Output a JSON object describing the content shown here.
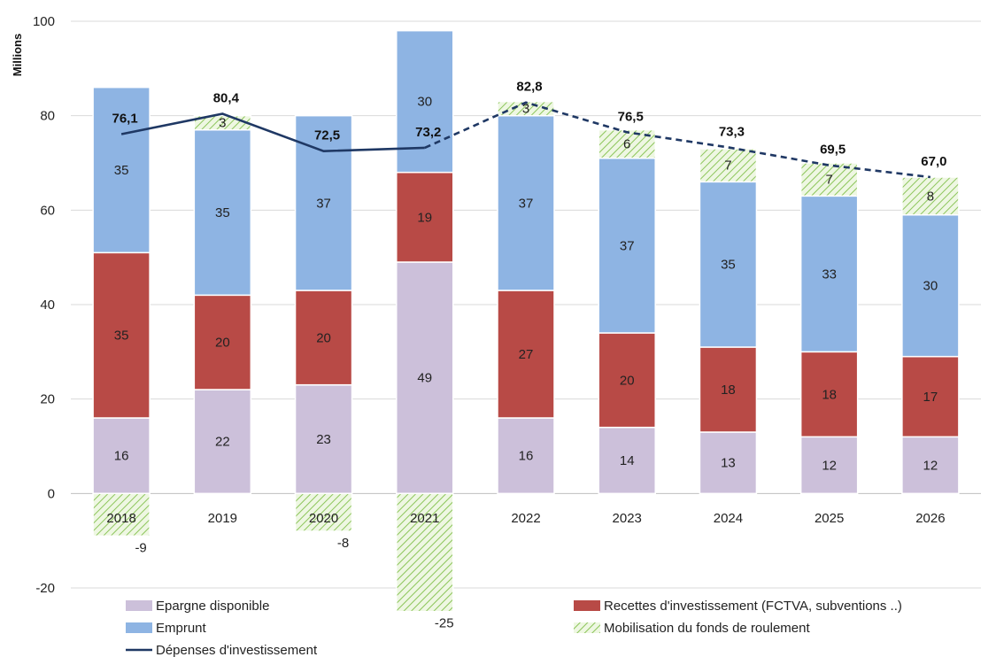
{
  "chart_data": {
    "type": "bar",
    "stacked": true,
    "ylabel": "Millions",
    "ylim": [
      -20,
      100
    ],
    "yticks": [
      -20,
      0,
      20,
      40,
      60,
      80,
      100
    ],
    "grid": true,
    "legend_position": "bottom",
    "categories": [
      "2018",
      "2019",
      "2020",
      "2021",
      "2022",
      "2023",
      "2024",
      "2025",
      "2026"
    ],
    "series": [
      {
        "name": "Epargne disponible",
        "kind": "bar",
        "color": "#ccc0da",
        "values": [
          16,
          22,
          23,
          49,
          16,
          14,
          13,
          12,
          12
        ],
        "labels": [
          "16",
          "22",
          "23",
          "49",
          "16",
          "14",
          "13",
          "12",
          "12"
        ]
      },
      {
        "name": "Recettes d'investissement (FCTVA, subventions ..)",
        "kind": "bar",
        "color": "#b84a46",
        "values": [
          35,
          20,
          20,
          19,
          27,
          20,
          18,
          18,
          17
        ],
        "labels": [
          "35",
          "20",
          "20",
          "19",
          "27",
          "20",
          "18",
          "18",
          "17"
        ]
      },
      {
        "name": "Emprunt",
        "kind": "bar",
        "color": "#8eb4e3",
        "values": [
          35,
          35,
          37,
          30,
          37,
          37,
          35,
          33,
          30
        ],
        "labels": [
          "35",
          "35",
          "37",
          "30",
          "37",
          "37",
          "35",
          "33",
          "30"
        ]
      },
      {
        "name": "Mobilisation du fonds de roulement",
        "kind": "bar",
        "color": "#b5d98a",
        "pattern": "hatch",
        "values": [
          -9,
          3,
          -8,
          -25,
          3,
          6,
          7,
          7,
          8
        ],
        "labels": [
          "-9",
          "3",
          "-8",
          "-25",
          "3",
          "6",
          "7",
          "7",
          "8"
        ]
      },
      {
        "name": "Dépenses d'investissement",
        "kind": "line",
        "color": "#1f3864",
        "values": [
          76.1,
          80.4,
          72.5,
          73.2,
          82.8,
          76.5,
          73.3,
          69.5,
          67.0
        ],
        "labels": [
          "76,1",
          "80,4",
          "72,5",
          "73,2",
          "82,8",
          "76,5",
          "73,3",
          "69,5",
          "67,0"
        ],
        "dashed_from_index": 3
      }
    ]
  }
}
